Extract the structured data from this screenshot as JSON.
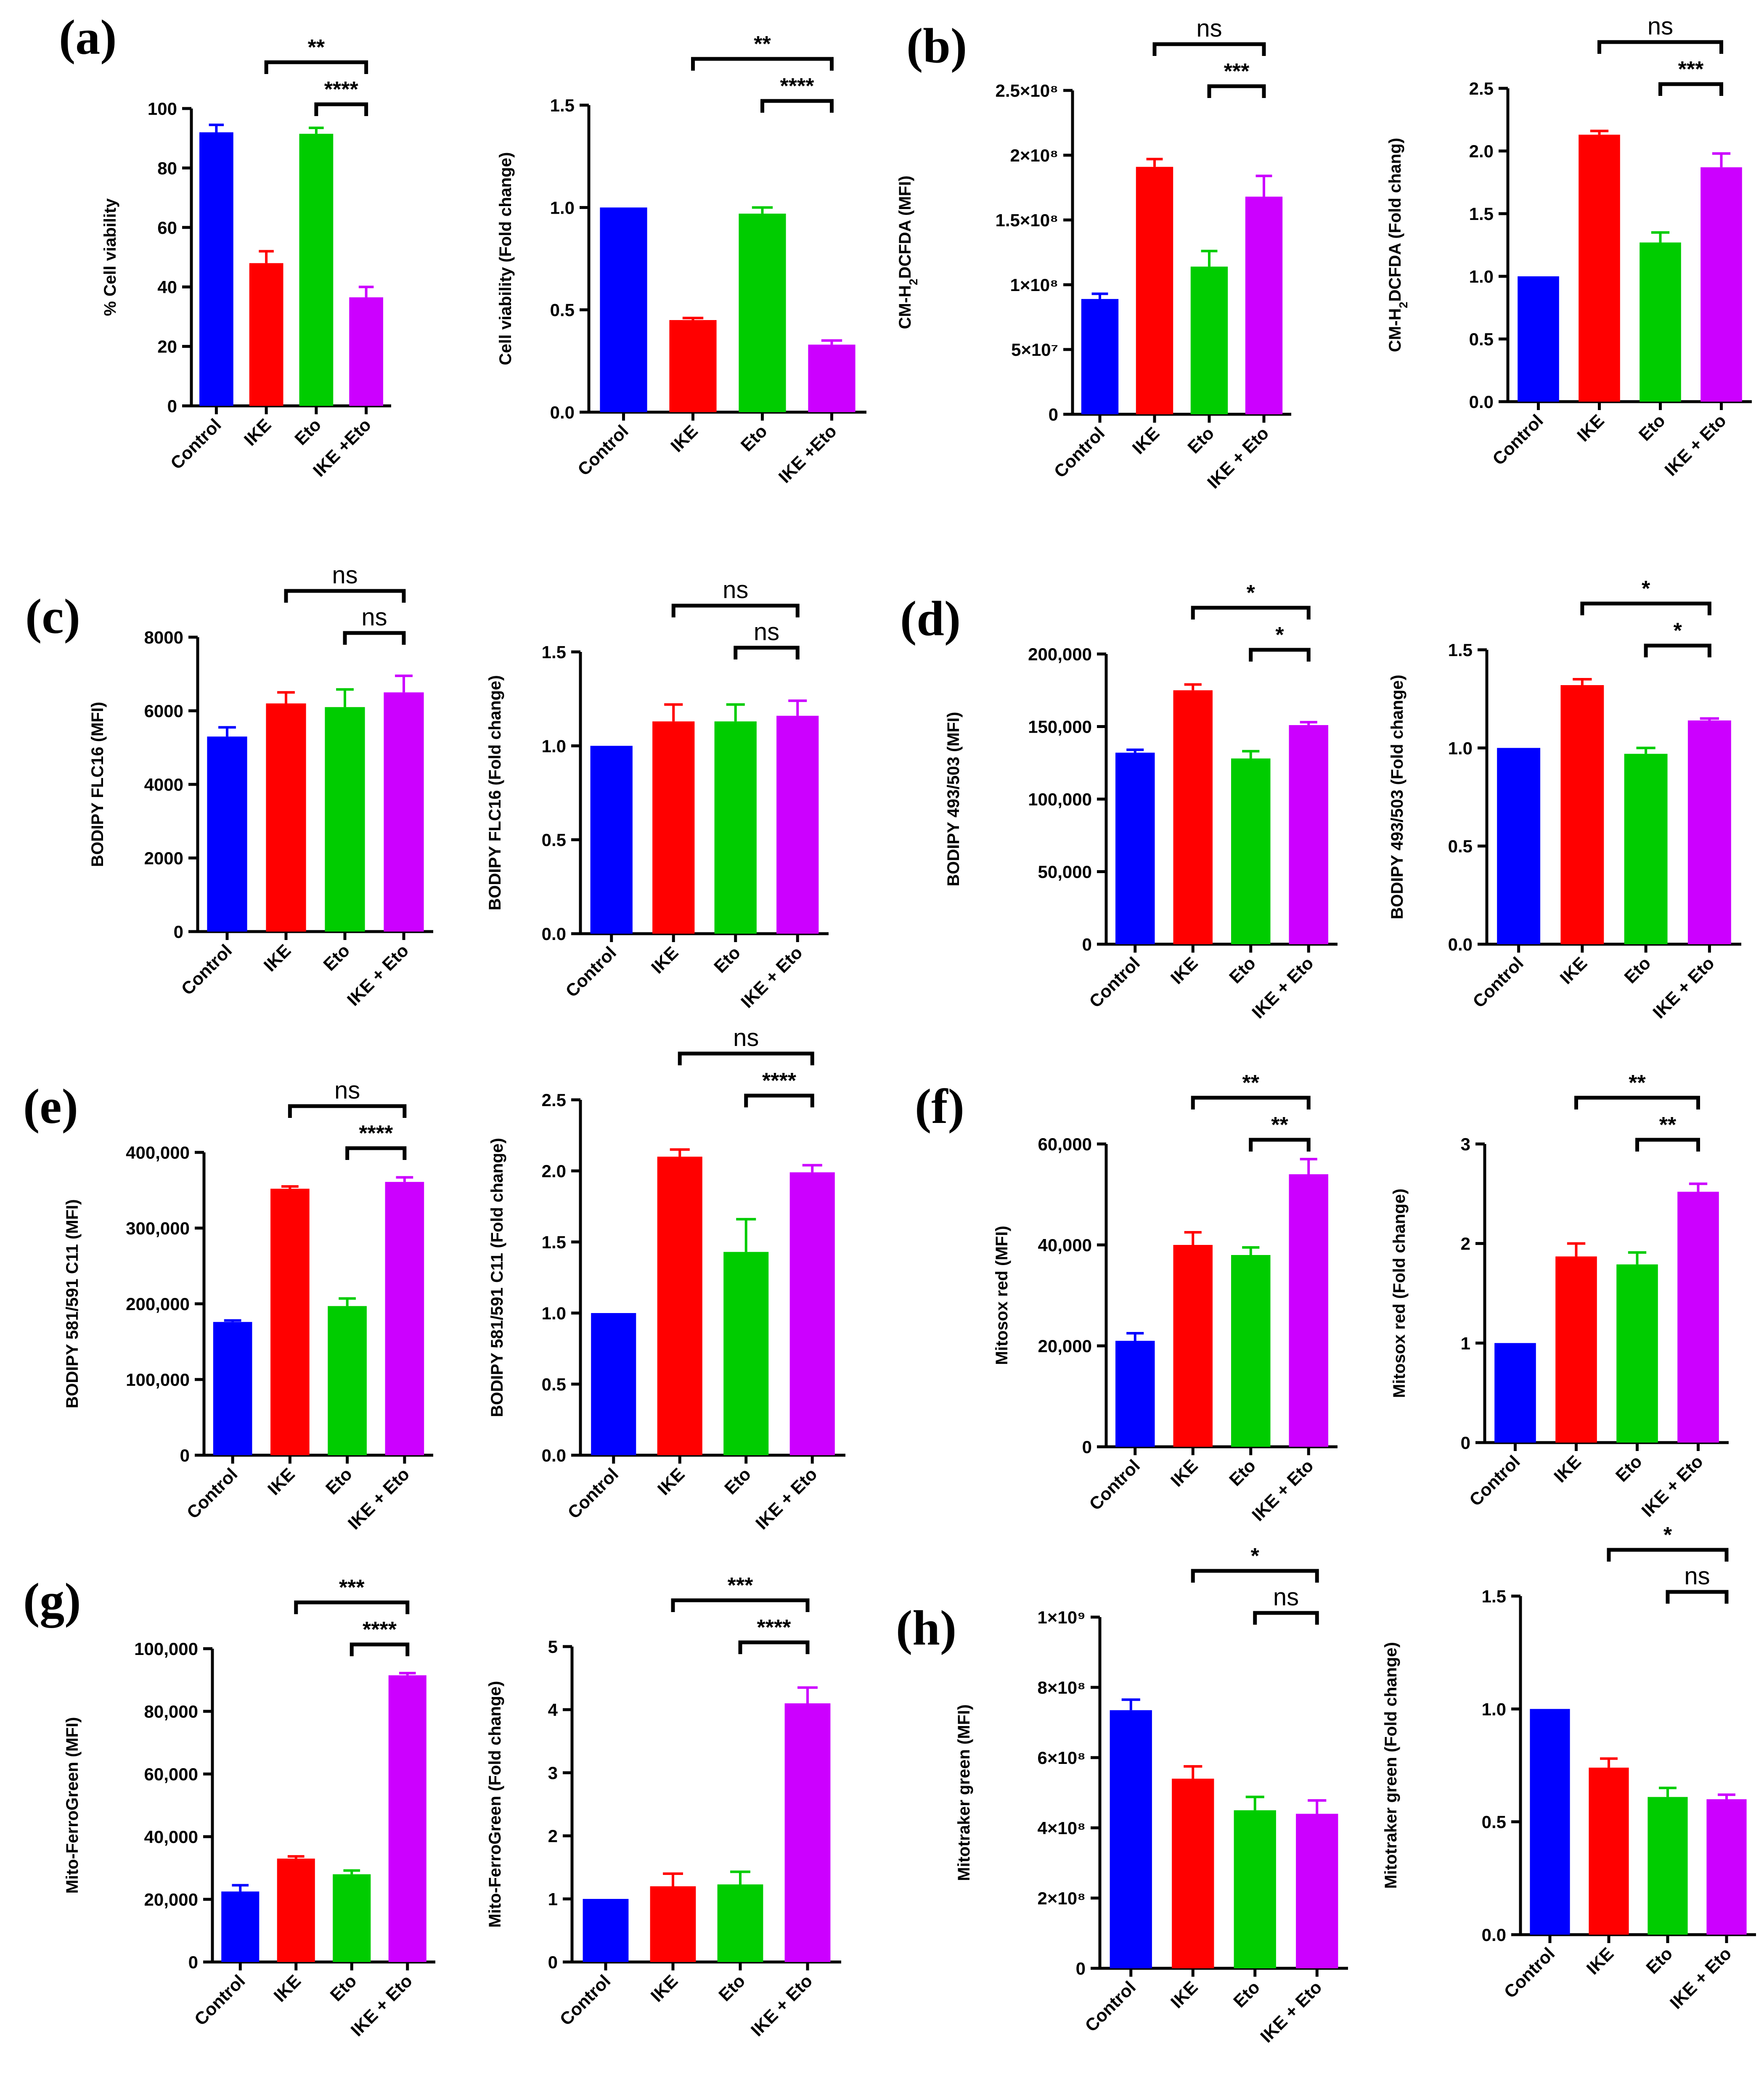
{
  "panel_labels": [
    "(a)",
    "(b)",
    "(c)",
    "(d)",
    "(e)",
    "(f)",
    "(g)",
    "(h)"
  ],
  "colors": {
    "Control": "#0000ff",
    "IKE": "#ff0000",
    "Eto": "#00cc00",
    "IKE + Eto": "#cc00ff"
  },
  "chart_data": [
    {
      "id": "a1",
      "panel": "(a)",
      "type": "bar",
      "categories": [
        "Control",
        "IKE",
        "Eto",
        "IKE +Eto"
      ],
      "values": [
        92,
        48,
        91.5,
        36.5
      ],
      "errors": [
        2.5,
        4,
        2,
        3.5
      ],
      "ylabel": "% Cell viability",
      "ylim": [
        0,
        100
      ],
      "yticks": [
        "0",
        "20",
        "40",
        "60",
        "80",
        "100"
      ],
      "brackets": [
        {
          "from": 1,
          "to": 3,
          "label": "**"
        },
        {
          "from": 2,
          "to": 3,
          "label": "****"
        }
      ]
    },
    {
      "id": "a2",
      "panel": "(a)",
      "type": "bar",
      "categories": [
        "Control",
        "IKE",
        "Eto",
        "IKE +Eto"
      ],
      "values": [
        1.0,
        0.45,
        0.97,
        0.33
      ],
      "errors": [
        0,
        0.01,
        0.03,
        0.02
      ],
      "ylabel": "Cell viability (Fold change)",
      "ylim": [
        0,
        1.5
      ],
      "yticks": [
        "0.0",
        "0.5",
        "1.0",
        "1.5"
      ],
      "brackets": [
        {
          "from": 1,
          "to": 3,
          "label": "**"
        },
        {
          "from": 2,
          "to": 3,
          "label": "****"
        }
      ]
    },
    {
      "id": "b1",
      "panel": "(b)",
      "type": "bar",
      "categories": [
        "Control",
        "IKE",
        "Eto",
        "IKE + Eto"
      ],
      "values": [
        89000000,
        191000000,
        114000000,
        168000000
      ],
      "errors": [
        4000000,
        6000000,
        12000000,
        16000000
      ],
      "ylabel": "CM-H2DCFDA (MFI)",
      "ylim": [
        0,
        250000000
      ],
      "yticks": [
        "0",
        "5×10⁷",
        "1×10⁸",
        "1.5×10⁸",
        "2×10⁸",
        "2.5×10⁸"
      ],
      "brackets": [
        {
          "from": 1,
          "to": 3,
          "label": "ns"
        },
        {
          "from": 2,
          "to": 3,
          "label": "***"
        }
      ]
    },
    {
      "id": "b2",
      "panel": "(b)",
      "type": "bar",
      "categories": [
        "Control",
        "IKE",
        "Eto",
        "IKE + Eto"
      ],
      "values": [
        1.0,
        2.13,
        1.27,
        1.87
      ],
      "errors": [
        0,
        0.03,
        0.08,
        0.11
      ],
      "ylabel": "CM-H2DCFDA (Fold chang)",
      "ylim": [
        0,
        2.5
      ],
      "yticks": [
        "0.0",
        "0.5",
        "1.0",
        "1.5",
        "2.0",
        "2.5"
      ],
      "brackets": [
        {
          "from": 1,
          "to": 3,
          "label": "ns"
        },
        {
          "from": 2,
          "to": 3,
          "label": "***"
        }
      ]
    },
    {
      "id": "c1",
      "panel": "(c)",
      "type": "bar",
      "categories": [
        "Control",
        "IKE",
        "Eto",
        "IKE + Eto"
      ],
      "values": [
        5300,
        6200,
        6100,
        6500
      ],
      "errors": [
        250,
        300,
        480,
        450
      ],
      "ylabel": "BODIPY FLC16 (MFI)",
      "ylim": [
        0,
        8000
      ],
      "yticks": [
        "0",
        "2000",
        "4000",
        "6000",
        "8000"
      ],
      "brackets": [
        {
          "from": 1,
          "to": 3,
          "label": "ns"
        },
        {
          "from": 2,
          "to": 3,
          "label": "ns"
        }
      ]
    },
    {
      "id": "c2",
      "panel": "(c)",
      "type": "bar",
      "categories": [
        "Control",
        "IKE",
        "Eto",
        "IKE + Eto"
      ],
      "values": [
        1.0,
        1.13,
        1.13,
        1.16
      ],
      "errors": [
        0,
        0.09,
        0.09,
        0.08
      ],
      "ylabel": "BODIPY FLC16 (Fold change)",
      "ylim": [
        0,
        1.5
      ],
      "yticks": [
        "0.0",
        "0.5",
        "1.0",
        "1.5"
      ],
      "brackets": [
        {
          "from": 1,
          "to": 3,
          "label": "ns"
        },
        {
          "from": 2,
          "to": 3,
          "label": "ns"
        }
      ]
    },
    {
      "id": "d1",
      "panel": "(d)",
      "type": "bar",
      "categories": [
        "Control",
        "IKE",
        "Eto",
        "IKE + Eto"
      ],
      "values": [
        132000,
        175000,
        128000,
        151000
      ],
      "errors": [
        2000,
        4000,
        5000,
        2000
      ],
      "ylabel": "BODIPY 493/503 (MFI)",
      "ylim": [
        0,
        200000
      ],
      "yticks": [
        "0",
        "50,000",
        "100,000",
        "150,000",
        "200,000"
      ],
      "brackets": [
        {
          "from": 1,
          "to": 3,
          "label": "*"
        },
        {
          "from": 2,
          "to": 3,
          "label": "*"
        }
      ]
    },
    {
      "id": "d2",
      "panel": "(d)",
      "type": "bar",
      "categories": [
        "Control",
        "IKE",
        "Eto",
        "IKE + Eto"
      ],
      "values": [
        1.0,
        1.32,
        0.97,
        1.14
      ],
      "errors": [
        0,
        0.03,
        0.03,
        0.01
      ],
      "ylabel": "BODIPY 493/503 (Fold change)",
      "ylim": [
        0,
        1.5
      ],
      "yticks": [
        "0.0",
        "0.5",
        "1.0",
        "1.5"
      ],
      "brackets": [
        {
          "from": 1,
          "to": 3,
          "label": "*"
        },
        {
          "from": 2,
          "to": 3,
          "label": "*"
        }
      ]
    },
    {
      "id": "e1",
      "panel": "(e)",
      "type": "bar",
      "categories": [
        "Control",
        "IKE",
        "Eto",
        "IKE + Eto"
      ],
      "values": [
        176000,
        352000,
        197000,
        361000
      ],
      "errors": [
        2000,
        3000,
        10000,
        6000
      ],
      "ylabel": "BODIPY 581/591 C11 (MFI)",
      "ylim": [
        0,
        400000
      ],
      "yticks": [
        "0",
        "100,000",
        "200,000",
        "300,000",
        "400,000"
      ],
      "brackets": [
        {
          "from": 1,
          "to": 3,
          "label": "ns"
        },
        {
          "from": 2,
          "to": 3,
          "label": "****"
        }
      ]
    },
    {
      "id": "e2",
      "panel": "(e)",
      "type": "bar",
      "categories": [
        "Control",
        "IKE",
        "Eto",
        "IKE + Eto"
      ],
      "values": [
        1.0,
        2.1,
        1.43,
        1.99
      ],
      "errors": [
        0,
        0.05,
        0.23,
        0.05
      ],
      "ylabel": "BODIPY 581/591 C11 (Fold change)",
      "ylim": [
        0,
        2.5
      ],
      "yticks": [
        "0.0",
        "0.5",
        "1.0",
        "1.5",
        "2.0",
        "2.5"
      ],
      "brackets": [
        {
          "from": 1,
          "to": 3,
          "label": "ns"
        },
        {
          "from": 2,
          "to": 3,
          "label": "****"
        }
      ]
    },
    {
      "id": "f1",
      "panel": "(f)",
      "type": "bar",
      "categories": [
        "Control",
        "IKE",
        "Eto",
        "IKE + Eto"
      ],
      "values": [
        21000,
        40000,
        38000,
        54000
      ],
      "errors": [
        1500,
        2500,
        1500,
        3000
      ],
      "ylabel": "Mitosox red (MFI)",
      "ylim": [
        0,
        60000
      ],
      "yticks": [
        "0",
        "20,000",
        "40,000",
        "60,000"
      ],
      "brackets": [
        {
          "from": 1,
          "to": 3,
          "label": "**"
        },
        {
          "from": 2,
          "to": 3,
          "label": "**"
        }
      ]
    },
    {
      "id": "f2",
      "panel": "(f)",
      "type": "bar",
      "categories": [
        "Control",
        "IKE",
        "Eto",
        "IKE + Eto"
      ],
      "values": [
        1.0,
        1.87,
        1.79,
        2.52
      ],
      "errors": [
        0,
        0.13,
        0.12,
        0.08
      ],
      "ylabel": "Mitosox red (Fold change)",
      "ylim": [
        0,
        3
      ],
      "yticks": [
        "0",
        "1",
        "2",
        "3"
      ],
      "brackets": [
        {
          "from": 1,
          "to": 3,
          "label": "**"
        },
        {
          "from": 2,
          "to": 3,
          "label": "**"
        }
      ]
    },
    {
      "id": "g1",
      "panel": "(g)",
      "type": "bar",
      "categories": [
        "Control",
        "IKE",
        "Eto",
        "IKE + Eto"
      ],
      "values": [
        22500,
        33000,
        28000,
        91500
      ],
      "errors": [
        2000,
        700,
        1200,
        700
      ],
      "ylabel": "Mito-FerroGreen (MFI)",
      "ylim": [
        0,
        100000
      ],
      "yticks": [
        "0",
        "20,000",
        "40,000",
        "60,000",
        "80,000",
        "100,000"
      ],
      "brackets": [
        {
          "from": 1,
          "to": 3,
          "label": "***"
        },
        {
          "from": 2,
          "to": 3,
          "label": "****"
        }
      ]
    },
    {
      "id": "g2",
      "panel": "(g)",
      "type": "bar",
      "categories": [
        "Control",
        "IKE",
        "Eto",
        "IKE + Eto"
      ],
      "values": [
        1.0,
        1.2,
        1.23,
        4.1
      ],
      "errors": [
        0,
        0.2,
        0.2,
        0.25
      ],
      "ylabel": "Mito-FerroGreen (Fold change)",
      "ylim": [
        0,
        5
      ],
      "yticks": [
        "0",
        "1",
        "2",
        "3",
        "4",
        "5"
      ],
      "brackets": [
        {
          "from": 1,
          "to": 3,
          "label": "***"
        },
        {
          "from": 2,
          "to": 3,
          "label": "****"
        }
      ]
    },
    {
      "id": "h1",
      "panel": "(h)",
      "type": "bar",
      "categories": [
        "Control",
        "IKE",
        "Eto",
        "IKE + Eto"
      ],
      "values": [
        735000000,
        540000000,
        450000000,
        440000000
      ],
      "errors": [
        30000000,
        35000000,
        38000000,
        38000000
      ],
      "ylabel": "Mitotraker green (MFI)",
      "ylim": [
        0,
        1000000000
      ],
      "yticks": [
        "0",
        "2×10⁸",
        "4×10⁸",
        "6×10⁸",
        "8×10⁸",
        "1×10⁹"
      ],
      "brackets": [
        {
          "from": 1,
          "to": 3,
          "label": "*"
        },
        {
          "from": 2,
          "to": 3,
          "label": "ns"
        }
      ]
    },
    {
      "id": "h2",
      "panel": "(h)",
      "type": "bar",
      "categories": [
        "Control",
        "IKE",
        "Eto",
        "IKE + Eto"
      ],
      "values": [
        1.0,
        0.74,
        0.61,
        0.6
      ],
      "errors": [
        0,
        0.04,
        0.04,
        0.02
      ],
      "ylabel": "Mitotraker green (Fold change)",
      "ylim": [
        0,
        1.5
      ],
      "yticks": [
        "0.0",
        "0.5",
        "1.0",
        "1.5"
      ],
      "brackets": [
        {
          "from": 1,
          "to": 3,
          "label": "*"
        },
        {
          "from": 2,
          "to": 3,
          "label": "ns"
        }
      ]
    }
  ]
}
